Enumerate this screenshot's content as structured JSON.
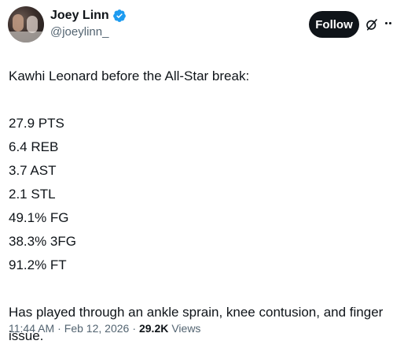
{
  "author": {
    "display_name": "Joey Linn",
    "handle": "@joeylinn_",
    "verified": true
  },
  "actions": {
    "follow_label": "Follow",
    "grok_icon": "grok-icon",
    "more_icon": "more-icon"
  },
  "tweet": {
    "intro": "Kawhi Leonard before the All-Star break:",
    "stats": [
      "27.9 PTS",
      "6.4 REB",
      "3.7 AST",
      "2.1 STL",
      "49.1% FG",
      "38.3% 3FG",
      "91.2% FT"
    ],
    "outro": "Has played through an ankle sprain, knee contusion, and finger issue."
  },
  "meta": {
    "time": "11:44 AM",
    "sep1": "·",
    "date": "Feb 12, 2026",
    "sep2": "·",
    "views_count": "29.2K",
    "views_label": "Views"
  },
  "colors": {
    "text": "#0f1419",
    "secondary": "#536471",
    "verified": "#1d9bf0",
    "follow_bg": "#0f1419"
  }
}
